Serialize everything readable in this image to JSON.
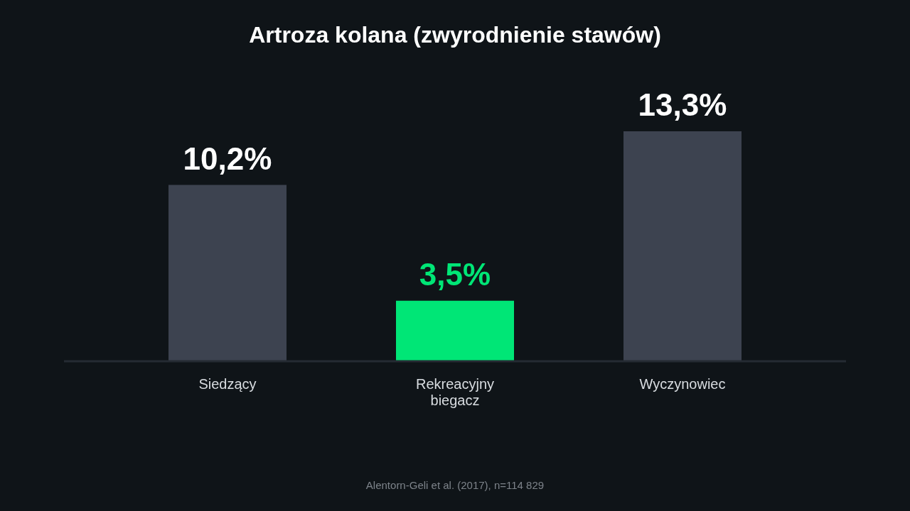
{
  "chart_data": {
    "type": "bar",
    "title": "Artroza kolana (zwyrodnienie stawów)",
    "categories": [
      "Siedzący",
      "Rekreacyjny biegacz",
      "Wyczynowiec"
    ],
    "values": [
      10.2,
      3.5,
      13.3
    ],
    "colors": [
      "#3d4350",
      "#00e676",
      "#3d4350"
    ],
    "value_labels": [
      "10,2%",
      "3,5%",
      "13,3%"
    ],
    "annotations": [
      "Alentorn-Geli et al. (2017), n=114 829"
    ]
  }
}
